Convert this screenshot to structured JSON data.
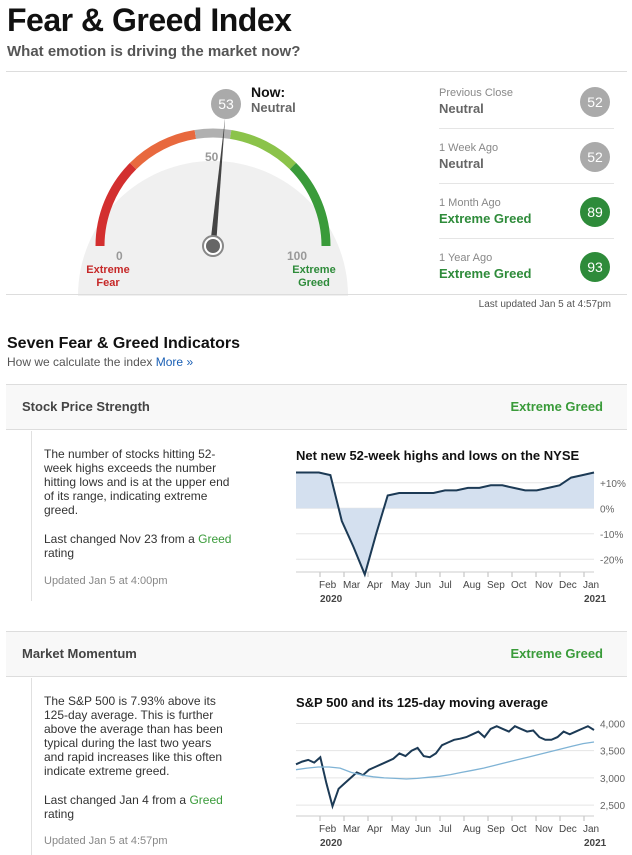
{
  "header": {
    "title": "Fear & Greed Index",
    "subtitle": "What emotion is driving the market now?"
  },
  "gauge": {
    "value": 53,
    "now_label": "Now:",
    "now_rating": "Neutral",
    "tick_0": "0",
    "tick_50": "50",
    "tick_100": "100",
    "left_label_1": "Extreme",
    "left_label_2": "Fear",
    "right_label_1": "Extreme",
    "right_label_2": "Greed"
  },
  "history": [
    {
      "label": "Previous Close",
      "rating": "Neutral",
      "value": "52",
      "color": "#aaaaaa",
      "rating_color": "#666666"
    },
    {
      "label": "1 Week Ago",
      "rating": "Neutral",
      "value": "52",
      "color": "#aaaaaa",
      "rating_color": "#666666"
    },
    {
      "label": "1 Month Ago",
      "rating": "Extreme Greed",
      "value": "89",
      "color": "#2e8b3a",
      "rating_color": "#2e8b3a"
    },
    {
      "label": "1 Year Ago",
      "rating": "Extreme Greed",
      "value": "93",
      "color": "#2e8b3a",
      "rating_color": "#2e8b3a"
    }
  ],
  "last_updated": "Last updated Jan 5 at 4:57pm",
  "indicators_section": {
    "title": "Seven Fear & Greed Indicators",
    "subtitle": "How we calculate the index",
    "more_link": "More »"
  },
  "indicators": [
    {
      "name": "Stock Price Strength",
      "rating": "Extreme Greed",
      "description": "The number of stocks hitting 52-week highs exceeds the number hitting lows and is at the upper end of its range, indicating extreme greed.",
      "changed_prefix": "Last changed Nov 23 from a",
      "changed_rating": "Greed",
      "changed_suffix": "rating",
      "updated": "Updated Jan 5 at 4:00pm",
      "chart_title": "Net new 52-week highs and lows on the NYSE"
    },
    {
      "name": "Market Momentum",
      "rating": "Extreme Greed",
      "description": "The S&P 500 is 7.93% above its 125-day average. This is further above the average than has been typical during the last two years and rapid increases like this often indicate extreme greed.",
      "changed_prefix": "Last changed Jan 4 from a",
      "changed_rating": "Greed",
      "changed_suffix": "rating",
      "updated": "Updated Jan 5 at 4:57pm",
      "chart_title": "S&P 500 and its 125-day moving average"
    }
  ],
  "chart_data": [
    {
      "type": "area",
      "title": "Net new 52-week highs and lows on the NYSE",
      "x_labels": [
        "Feb",
        "Mar",
        "Apr",
        "May",
        "Jun",
        "Jul",
        "Aug",
        "Sep",
        "Oct",
        "Nov",
        "Dec",
        "Jan"
      ],
      "year_labels": [
        "2020",
        "2021"
      ],
      "y_ticks": [
        "+10%",
        "0%",
        "-10%",
        "-20%"
      ],
      "ylim": [
        -25,
        15
      ],
      "series": [
        {
          "values": [
            14,
            14,
            14,
            13,
            -5,
            -15,
            -26,
            -10,
            5,
            6,
            6,
            6,
            6,
            7,
            7,
            8,
            8,
            9,
            9,
            8,
            7,
            7,
            8,
            9,
            12,
            13,
            14
          ]
        }
      ]
    },
    {
      "type": "line",
      "title": "S&P 500 and its 125-day moving average",
      "x_labels": [
        "Feb",
        "Mar",
        "Apr",
        "May",
        "Jun",
        "Jul",
        "Aug",
        "Sep",
        "Oct",
        "Nov",
        "Dec",
        "Jan"
      ],
      "year_labels": [
        "2020",
        "2021"
      ],
      "y_ticks": [
        "4,000",
        "3,500",
        "3,000",
        "2,500"
      ],
      "ylim": [
        2300,
        4100
      ],
      "series": [
        {
          "values": [
            3250,
            3300,
            3330,
            3280,
            3380,
            2900,
            2480,
            2800,
            2900,
            3000,
            3100,
            3050,
            3150,
            3200,
            3250,
            3300,
            3350,
            3450,
            3400,
            3500,
            3550,
            3400,
            3380,
            3450,
            3600,
            3650,
            3700,
            3720,
            3750,
            3800,
            3850,
            3750,
            3900,
            3950,
            3900,
            3850,
            3950,
            3900,
            3850,
            3870,
            3750,
            3700,
            3700,
            3750,
            3850,
            3800,
            3850,
            3900,
            3950,
            3880
          ]
        },
        {
          "values": [
            3150,
            3180,
            3200,
            3200,
            3180,
            3100,
            3050,
            3020,
            3000,
            2990,
            2980,
            2990,
            3010,
            3030,
            3060,
            3100,
            3140,
            3180,
            3230,
            3280,
            3330,
            3380,
            3430,
            3480,
            3530,
            3580,
            3630,
            3660
          ]
        }
      ]
    }
  ]
}
